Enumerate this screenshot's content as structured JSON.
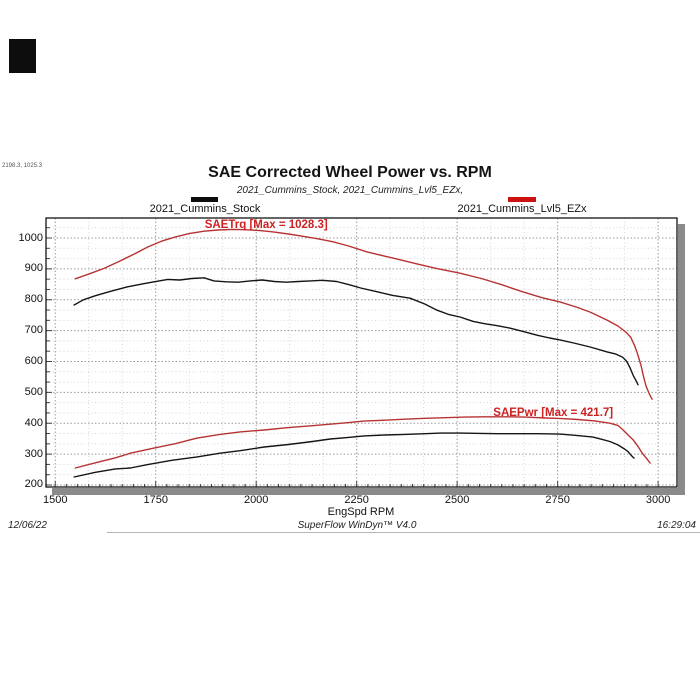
{
  "cursor_readout": "2198.3, 1025.3",
  "title": "SAE Corrected Wheel Power vs. RPM",
  "subtitle": "2021_Cummins_Stock, 2021_Cummins_Lvl5_EZx,",
  "legend": [
    {
      "label": "2021_Cummins_Stock",
      "color": "#0d0d0d"
    },
    {
      "label": "2021_Cummins_Lvl5_EZx",
      "color": "#cc1111"
    }
  ],
  "footer": {
    "date": "12/06/22",
    "app": "SuperFlow WinDyn™ V4.0",
    "time": "16:29:04"
  },
  "chart_data": {
    "type": "line",
    "title": "SAE Corrected Wheel Power vs. RPM",
    "subtitle": "2021_Cummins_Stock, 2021_Cummins_Lvl5_EZx,",
    "xlabel": "EngSpd RPM",
    "ylabel": "",
    "xlim": [
      1477,
      3047
    ],
    "ylim": [
      193.5,
      1064.8
    ],
    "x_ticks": [
      1500,
      1750,
      2000,
      2250,
      2500,
      2750,
      3000
    ],
    "y_ticks": [
      200,
      300,
      400,
      500,
      600,
      700,
      800,
      900,
      1000
    ],
    "grid": "dotted, minor subdivisions in thirds",
    "legend_position": "top, outside plot",
    "annotations": [
      {
        "text": "SAETrq [Max = 1028.3]",
        "x": 2025,
        "y": 1042,
        "color": "#cc2222"
      },
      {
        "text": "SAEPwr [Max = 421.7]",
        "x": 2739,
        "y": 432,
        "color": "#cc2222"
      }
    ],
    "series": [
      {
        "name": "2021_Cummins_Stock SAETrq",
        "color": "#151515",
        "points": [
          [
            1547,
            783
          ],
          [
            1570,
            800
          ],
          [
            1600,
            813
          ],
          [
            1640,
            828
          ],
          [
            1680,
            842
          ],
          [
            1720,
            852
          ],
          [
            1755,
            860
          ],
          [
            1780,
            866
          ],
          [
            1810,
            864
          ],
          [
            1840,
            869
          ],
          [
            1870,
            871
          ],
          [
            1895,
            861
          ],
          [
            1925,
            858
          ],
          [
            1955,
            857
          ],
          [
            1985,
            861
          ],
          [
            2015,
            864
          ],
          [
            2045,
            859
          ],
          [
            2075,
            857
          ],
          [
            2105,
            859
          ],
          [
            2135,
            861
          ],
          [
            2165,
            863
          ],
          [
            2200,
            859
          ],
          [
            2230,
            849
          ],
          [
            2260,
            838
          ],
          [
            2300,
            826
          ],
          [
            2340,
            814
          ],
          [
            2383,
            805
          ],
          [
            2420,
            786
          ],
          [
            2450,
            766
          ],
          [
            2480,
            752
          ],
          [
            2507,
            744
          ],
          [
            2540,
            730
          ],
          [
            2570,
            722
          ],
          [
            2600,
            716
          ],
          [
            2632,
            708
          ],
          [
            2665,
            697
          ],
          [
            2700,
            685
          ],
          [
            2730,
            676
          ],
          [
            2756,
            670
          ],
          [
            2790,
            660
          ],
          [
            2831,
            647
          ],
          [
            2873,
            631
          ],
          [
            2895,
            624
          ],
          [
            2912,
            614
          ],
          [
            2922,
            600
          ],
          [
            2930,
            580
          ],
          [
            2938,
            555
          ],
          [
            2945,
            538
          ],
          [
            2950,
            525
          ]
        ]
      },
      {
        "name": "2021_Cummins_Lvl5_EZx SAETrq",
        "color": "#b73333",
        "points": [
          [
            1550,
            868
          ],
          [
            1585,
            884
          ],
          [
            1620,
            901
          ],
          [
            1660,
            925
          ],
          [
            1700,
            950
          ],
          [
            1730,
            971
          ],
          [
            1765,
            990
          ],
          [
            1800,
            1004
          ],
          [
            1835,
            1015
          ],
          [
            1870,
            1022
          ],
          [
            1905,
            1026
          ],
          [
            1940,
            1028
          ],
          [
            1975,
            1027
          ],
          [
            2010,
            1024
          ],
          [
            2045,
            1019
          ],
          [
            2080,
            1013
          ],
          [
            2115,
            1006
          ],
          [
            2150,
            998
          ],
          [
            2190,
            988
          ],
          [
            2230,
            974
          ],
          [
            2276,
            955
          ],
          [
            2320,
            941
          ],
          [
            2360,
            929
          ],
          [
            2400,
            916
          ],
          [
            2450,
            901
          ],
          [
            2507,
            886
          ],
          [
            2560,
            869
          ],
          [
            2610,
            849
          ],
          [
            2660,
            827
          ],
          [
            2710,
            807
          ],
          [
            2756,
            793
          ],
          [
            2800,
            775
          ],
          [
            2831,
            760
          ],
          [
            2873,
            734
          ],
          [
            2900,
            715
          ],
          [
            2920,
            695
          ],
          [
            2932,
            678
          ],
          [
            2942,
            650
          ],
          [
            2950,
            620
          ],
          [
            2958,
            585
          ],
          [
            2964,
            550
          ],
          [
            2970,
            520
          ],
          [
            2978,
            495
          ],
          [
            2985,
            478
          ]
        ]
      },
      {
        "name": "2021_Cummins_Stock SAEPwr",
        "color": "#151515",
        "points": [
          [
            1547,
            226
          ],
          [
            1600,
            241
          ],
          [
            1650,
            252
          ],
          [
            1687,
            255
          ],
          [
            1730,
            266
          ],
          [
            1790,
            280
          ],
          [
            1853,
            291
          ],
          [
            1910,
            303
          ],
          [
            1960,
            311
          ],
          [
            2020,
            323
          ],
          [
            2080,
            331
          ],
          [
            2140,
            341
          ],
          [
            2184,
            349
          ],
          [
            2230,
            354
          ],
          [
            2268,
            359
          ],
          [
            2320,
            362
          ],
          [
            2370,
            364
          ],
          [
            2420,
            366
          ],
          [
            2460,
            368
          ],
          [
            2507,
            368
          ],
          [
            2560,
            367
          ],
          [
            2600,
            366
          ],
          [
            2650,
            366
          ],
          [
            2700,
            366
          ],
          [
            2756,
            365
          ],
          [
            2800,
            360
          ],
          [
            2838,
            355
          ],
          [
            2860,
            348
          ],
          [
            2880,
            341
          ],
          [
            2900,
            330
          ],
          [
            2915,
            318
          ],
          [
            2925,
            308
          ],
          [
            2933,
            296
          ],
          [
            2940,
            287
          ]
        ]
      },
      {
        "name": "2021_Cummins_Lvl5_EZx SAEPwr",
        "color": "#b73333",
        "points": [
          [
            1550,
            255
          ],
          [
            1600,
            272
          ],
          [
            1650,
            288
          ],
          [
            1687,
            303
          ],
          [
            1740,
            318
          ],
          [
            1800,
            334
          ],
          [
            1853,
            352
          ],
          [
            1910,
            364
          ],
          [
            1960,
            372
          ],
          [
            2020,
            378
          ],
          [
            2080,
            386
          ],
          [
            2140,
            392
          ],
          [
            2184,
            397
          ],
          [
            2230,
            402
          ],
          [
            2268,
            407
          ],
          [
            2320,
            410
          ],
          [
            2370,
            413
          ],
          [
            2420,
            416
          ],
          [
            2470,
            418
          ],
          [
            2520,
            420
          ],
          [
            2570,
            421
          ],
          [
            2620,
            421
          ],
          [
            2670,
            420
          ],
          [
            2720,
            417
          ],
          [
            2760,
            415
          ],
          [
            2800,
            412
          ],
          [
            2840,
            408
          ],
          [
            2880,
            400
          ],
          [
            2900,
            393
          ],
          [
            2913,
            378
          ],
          [
            2925,
            362
          ],
          [
            2938,
            346
          ],
          [
            2950,
            325
          ],
          [
            2960,
            304
          ],
          [
            2970,
            288
          ],
          [
            2980,
            271
          ]
        ]
      }
    ]
  }
}
